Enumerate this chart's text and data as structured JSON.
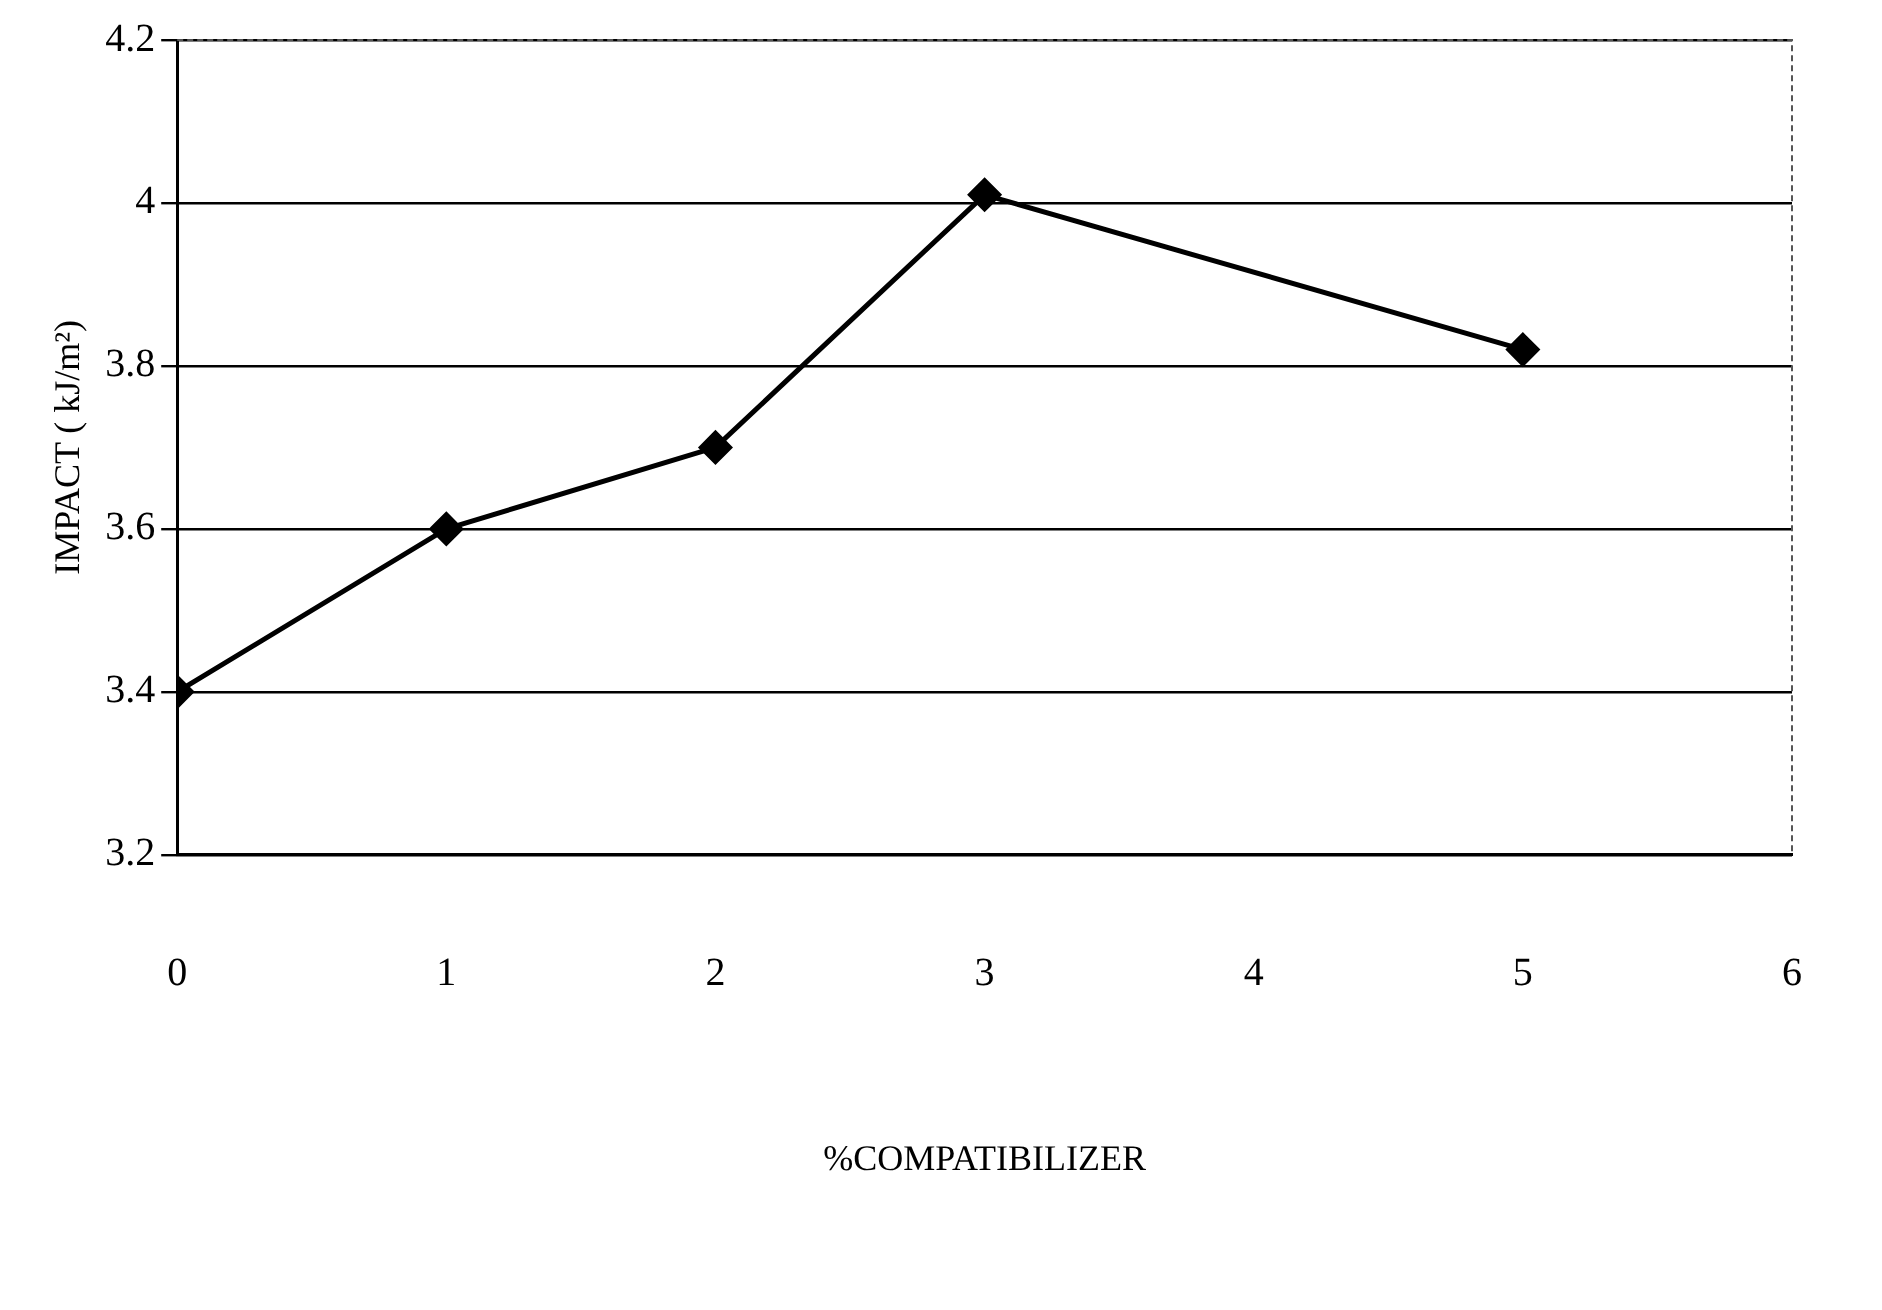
{
  "chart_data": {
    "type": "line",
    "xlabel": "%COMPATIBILIZER",
    "ylabel": "IMPACT ( kJ/m²)",
    "x": [
      0,
      1,
      2,
      3,
      5
    ],
    "values": [
      3.4,
      3.6,
      3.7,
      4.01,
      3.82
    ],
    "color": "#000000",
    "xlim": [
      0,
      6
    ],
    "xticks": [
      0,
      1,
      2,
      3,
      4,
      5,
      6
    ],
    "ylim": [
      3.2,
      4.2
    ],
    "yticks": [
      3.2,
      3.4,
      3.6,
      3.8,
      4,
      4.2
    ],
    "grid": "y",
    "marker": "diamond",
    "line_style": "solid",
    "legend": false
  }
}
